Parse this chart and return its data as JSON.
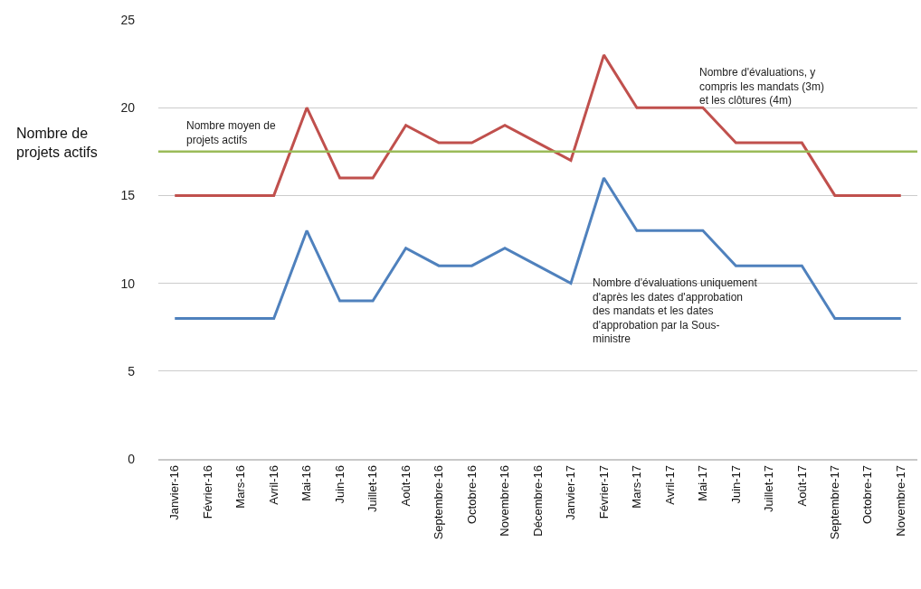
{
  "chart_data": {
    "type": "line",
    "ylabel": "Nombre de projets actifs",
    "categories": [
      "Janvier-16",
      "Février-16",
      "Mars-16",
      "Avril-16",
      "Mai-16",
      "Juin-16",
      "Juillet-16",
      "Août-16",
      "Septembre-16",
      "Octobre-16",
      "Novembre-16",
      "Décembre-16",
      "Janvier-17",
      "Février-17",
      "Mars-17",
      "Avril-17",
      "Mai-17",
      "Juin-17",
      "Juillet-17",
      "Août-17",
      "Septembre-17",
      "Octobre-17",
      "Novembre-17"
    ],
    "series": [
      {
        "name": "Nombre d'évaluations, y compris les mandats (3m) et les clôtures (4m)",
        "color": "#c0504d",
        "values": [
          15,
          15,
          15,
          15,
          20,
          16,
          16,
          19,
          18,
          18,
          19,
          18,
          17,
          23,
          20,
          20,
          20,
          18,
          18,
          18,
          15,
          15,
          15
        ]
      },
      {
        "name": "Nombre d'évaluations uniquement d'après les dates d'approbation des mandats et les dates d'approbation par la Sous-ministre",
        "color": "#4f81bd",
        "values": [
          8,
          8,
          8,
          8,
          13,
          9,
          9,
          12,
          11,
          11,
          12,
          11,
          10,
          16,
          13,
          13,
          13,
          11,
          11,
          11,
          8,
          8,
          8
        ]
      }
    ],
    "ref_lines": [
      {
        "axis": "y",
        "value": 17.5,
        "label": "Nombre moyen de projets actifs",
        "color": "#9bbb59"
      }
    ],
    "ylim": [
      0,
      25
    ],
    "yticks": [
      0,
      5,
      10,
      15,
      20,
      25
    ],
    "grid": "y",
    "legend": false,
    "marker": "none",
    "line_style": "solid"
  }
}
